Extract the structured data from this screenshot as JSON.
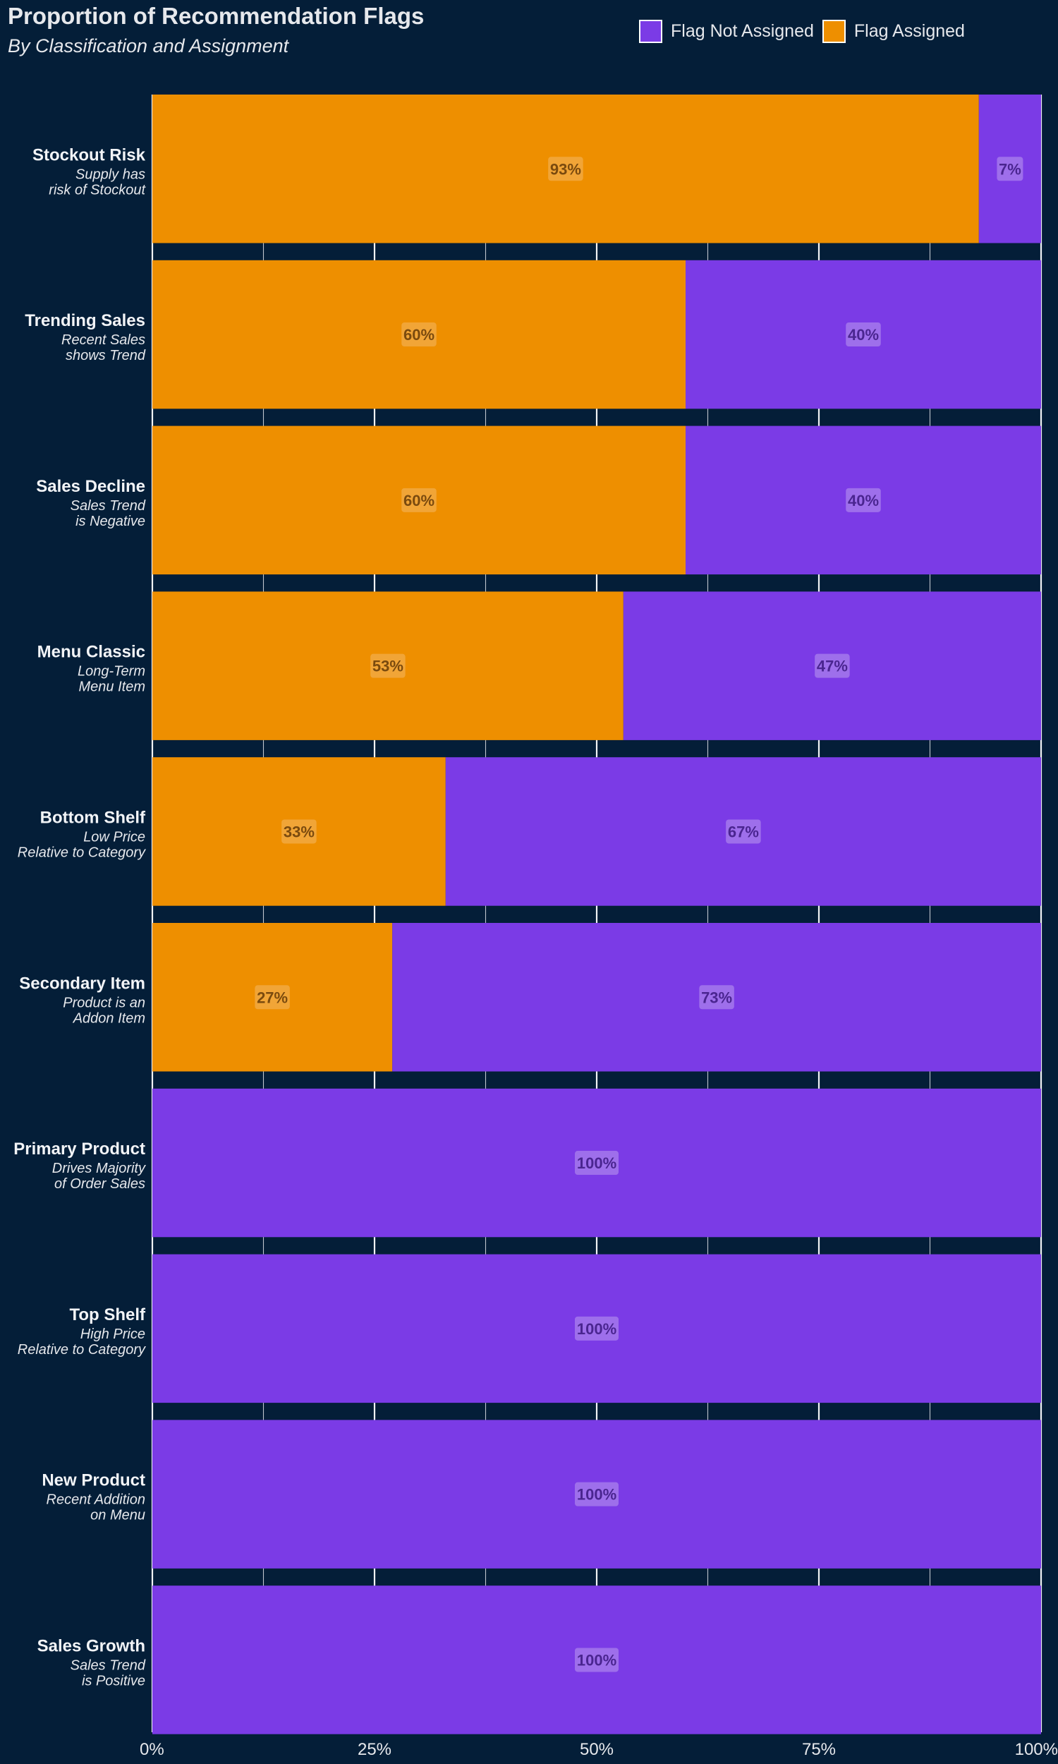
{
  "title": "Proportion of Recommendation Flags",
  "subtitle": "By Classification and Assignment",
  "legend": [
    {
      "label": "Flag Not Assigned",
      "color": "#7B3BE6"
    },
    {
      "label": "Flag Assigned",
      "color": "#EE8F00"
    }
  ],
  "colors": {
    "background": "#041E38",
    "assigned": "#EE8F00",
    "not_assigned": "#7B3BE6",
    "assigned_label_text": "#7A4A0E",
    "not_assigned_label_text": "#4A2590"
  },
  "chart_data": {
    "type": "bar",
    "orientation": "horizontal",
    "stacked": true,
    "xlim": [
      0,
      100
    ],
    "x_ticks": [
      "0%",
      "25%",
      "50%",
      "75%",
      "100%"
    ],
    "grid": true,
    "legend_position": "top-right",
    "categories": [
      {
        "name": "Stockout Risk",
        "desc": [
          "Supply has",
          "risk of Stockout"
        ]
      },
      {
        "name": "Trending Sales",
        "desc": [
          "Recent Sales",
          "shows Trend"
        ]
      },
      {
        "name": "Sales Decline",
        "desc": [
          "Sales Trend",
          "is Negative"
        ]
      },
      {
        "name": "Menu Classic",
        "desc": [
          "Long-Term",
          "Menu Item"
        ]
      },
      {
        "name": "Bottom Shelf",
        "desc": [
          "Low Price",
          "Relative to Category"
        ]
      },
      {
        "name": "Secondary Item",
        "desc": [
          "Product is an",
          "Addon Item"
        ]
      },
      {
        "name": "Primary Product",
        "desc": [
          "Drives Majority",
          "of Order Sales"
        ]
      },
      {
        "name": "Top Shelf",
        "desc": [
          "High Price",
          "Relative to Category"
        ]
      },
      {
        "name": "New Product",
        "desc": [
          "Recent Addition",
          "on Menu"
        ]
      },
      {
        "name": "Sales Growth",
        "desc": [
          "Sales Trend",
          "is Positive"
        ]
      }
    ],
    "series": [
      {
        "name": "Flag Assigned",
        "values": [
          93,
          60,
          60,
          53,
          33,
          27,
          0,
          0,
          0,
          0
        ]
      },
      {
        "name": "Flag Not Assigned",
        "values": [
          7,
          40,
          40,
          47,
          67,
          73,
          100,
          100,
          100,
          100
        ]
      }
    ],
    "labels": {
      "Flag Assigned": [
        "93%",
        "60%",
        "60%",
        "53%",
        "33%",
        "27%",
        "",
        "",
        "",
        ""
      ],
      "Flag Not Assigned": [
        "7%",
        "40%",
        "40%",
        "47%",
        "67%",
        "73%",
        "100%",
        "100%",
        "100%",
        "100%"
      ]
    }
  }
}
